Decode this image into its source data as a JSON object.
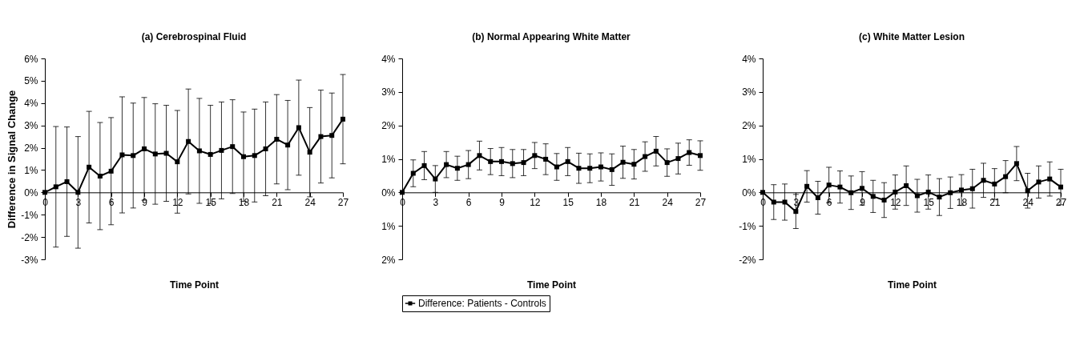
{
  "chart_data": [
    {
      "type": "line",
      "title": "(a) Cerebrospinal Fluid",
      "xlabel": "Time Point",
      "ylabel": "Difference in Signal Change",
      "marker": "square",
      "line_style": "solid",
      "x": [
        0,
        1,
        2,
        3,
        4,
        5,
        6,
        7,
        8,
        9,
        10,
        11,
        12,
        13,
        14,
        15,
        16,
        17,
        18,
        19,
        20,
        21,
        22,
        23,
        24,
        25,
        26,
        27
      ],
      "xlim": [
        0,
        27
      ],
      "xticks": [
        0,
        3,
        6,
        9,
        12,
        15,
        18,
        21,
        24,
        27
      ],
      "ylim": [
        -3,
        6
      ],
      "yticks": [
        {
          "value": -3,
          "label": "-3%"
        },
        {
          "value": -2,
          "label": "-2%"
        },
        {
          "value": -1,
          "label": "-1%"
        },
        {
          "value": 0,
          "label": "0%"
        },
        {
          "value": 1,
          "label": "1%"
        },
        {
          "value": 2,
          "label": "2%"
        },
        {
          "value": 3,
          "label": "3%"
        },
        {
          "value": 4,
          "label": "4%"
        },
        {
          "value": 5,
          "label": "5%"
        },
        {
          "value": 6,
          "label": "6%"
        }
      ],
      "series": [
        {
          "name": "Difference: Patients - Controls",
          "color": "#000000",
          "values": [
            0,
            0.25,
            0.48,
            0,
            1.13,
            0.73,
            0.95,
            1.68,
            1.65,
            1.95,
            1.72,
            1.75,
            1.37,
            2.28,
            1.86,
            1.7,
            1.88,
            2.05,
            1.6,
            1.65,
            1.95,
            2.38,
            2.12,
            2.9,
            1.8,
            2.5,
            2.55,
            3.28
          ],
          "errors": [
            null,
            2.7,
            2.45,
            2.5,
            2.5,
            2.4,
            2.4,
            2.6,
            2.35,
            2.3,
            2.25,
            2.15,
            2.3,
            2.35,
            2.35,
            2.2,
            2.17,
            2.1,
            2.0,
            2.08,
            2.1,
            2.0,
            2.0,
            2.13,
            2.0,
            2.08,
            1.9,
            2.0
          ]
        }
      ]
    },
    {
      "type": "line",
      "title": "(b) Normal Appearing White Matter",
      "xlabel": "Time Point",
      "marker": "square",
      "line_style": "solid",
      "legend": "bottom",
      "x": [
        0,
        1,
        2,
        3,
        4,
        5,
        6,
        7,
        8,
        9,
        10,
        11,
        12,
        13,
        14,
        15,
        16,
        17,
        18,
        19,
        20,
        21,
        22,
        23,
        24,
        25,
        26,
        27
      ],
      "xlim": [
        0,
        27
      ],
      "xticks": [
        0,
        3,
        6,
        9,
        12,
        15,
        18,
        21,
        24,
        27
      ],
      "ylim": [
        -2,
        4
      ],
      "yticks": [
        {
          "value": -2,
          "label": "2%"
        },
        {
          "value": -1,
          "label": "1%"
        },
        {
          "value": 0,
          "label": "0%"
        },
        {
          "value": 1,
          "label": "1%"
        },
        {
          "value": 2,
          "label": "2%"
        },
        {
          "value": 3,
          "label": "3%"
        },
        {
          "value": 4,
          "label": "4%"
        }
      ],
      "series": [
        {
          "name": "Difference: Patients - Controls",
          "color": "#000000",
          "values": [
            0,
            0.57,
            0.8,
            0.4,
            0.83,
            0.72,
            0.83,
            1.1,
            0.92,
            0.92,
            0.86,
            0.89,
            1.1,
            0.99,
            0.76,
            0.92,
            0.72,
            0.72,
            0.76,
            0.68,
            0.9,
            0.84,
            1.07,
            1.23,
            0.89,
            1.01,
            1.19,
            1.1
          ],
          "errors": [
            null,
            0.4,
            0.42,
            0.4,
            0.39,
            0.36,
            0.42,
            0.43,
            0.39,
            0.42,
            0.42,
            0.39,
            0.39,
            0.46,
            0.4,
            0.42,
            0.45,
            0.43,
            0.42,
            0.47,
            0.48,
            0.44,
            0.44,
            0.44,
            0.41,
            0.46,
            0.38,
            0.44
          ]
        }
      ]
    },
    {
      "type": "line",
      "title": "(c) White Matter Lesion",
      "xlabel": "Time Point",
      "marker": "square",
      "line_style": "solid",
      "x": [
        0,
        1,
        2,
        3,
        4,
        5,
        6,
        7,
        8,
        9,
        10,
        11,
        12,
        13,
        14,
        15,
        16,
        17,
        18,
        19,
        20,
        21,
        22,
        23,
        24,
        25,
        26,
        27
      ],
      "xlim": [
        0,
        27
      ],
      "xticks": [
        0,
        3,
        6,
        9,
        12,
        15,
        18,
        21,
        24,
        27
      ],
      "ylim": [
        -2,
        4
      ],
      "yticks": [
        {
          "value": -2,
          "label": "-2%"
        },
        {
          "value": -1,
          "label": "-1%"
        },
        {
          "value": 0,
          "label": "0%"
        },
        {
          "value": 1,
          "label": "1%"
        },
        {
          "value": 2,
          "label": "2%"
        },
        {
          "value": 3,
          "label": "3%"
        },
        {
          "value": 4,
          "label": "4%"
        }
      ],
      "series": [
        {
          "name": "Difference: Patients - Controls",
          "color": "#000000",
          "values": [
            0,
            -0.29,
            -0.29,
            -0.57,
            0.18,
            -0.16,
            0.22,
            0.16,
            -0.01,
            0.12,
            -0.12,
            -0.23,
            0.01,
            0.2,
            -0.1,
            0.01,
            -0.14,
            -0.01,
            0.07,
            0.11,
            0.36,
            0.25,
            0.47,
            0.86,
            0.05,
            0.31,
            0.4,
            0.16
          ],
          "errors": [
            null,
            0.52,
            0.54,
            0.51,
            0.47,
            0.49,
            0.53,
            0.48,
            0.5,
            0.5,
            0.48,
            0.52,
            0.51,
            0.59,
            0.49,
            0.51,
            0.55,
            0.47,
            0.46,
            0.58,
            0.51,
            0.46,
            0.48,
            0.51,
            0.52,
            0.48,
            0.51,
            0.53
          ]
        }
      ]
    }
  ]
}
